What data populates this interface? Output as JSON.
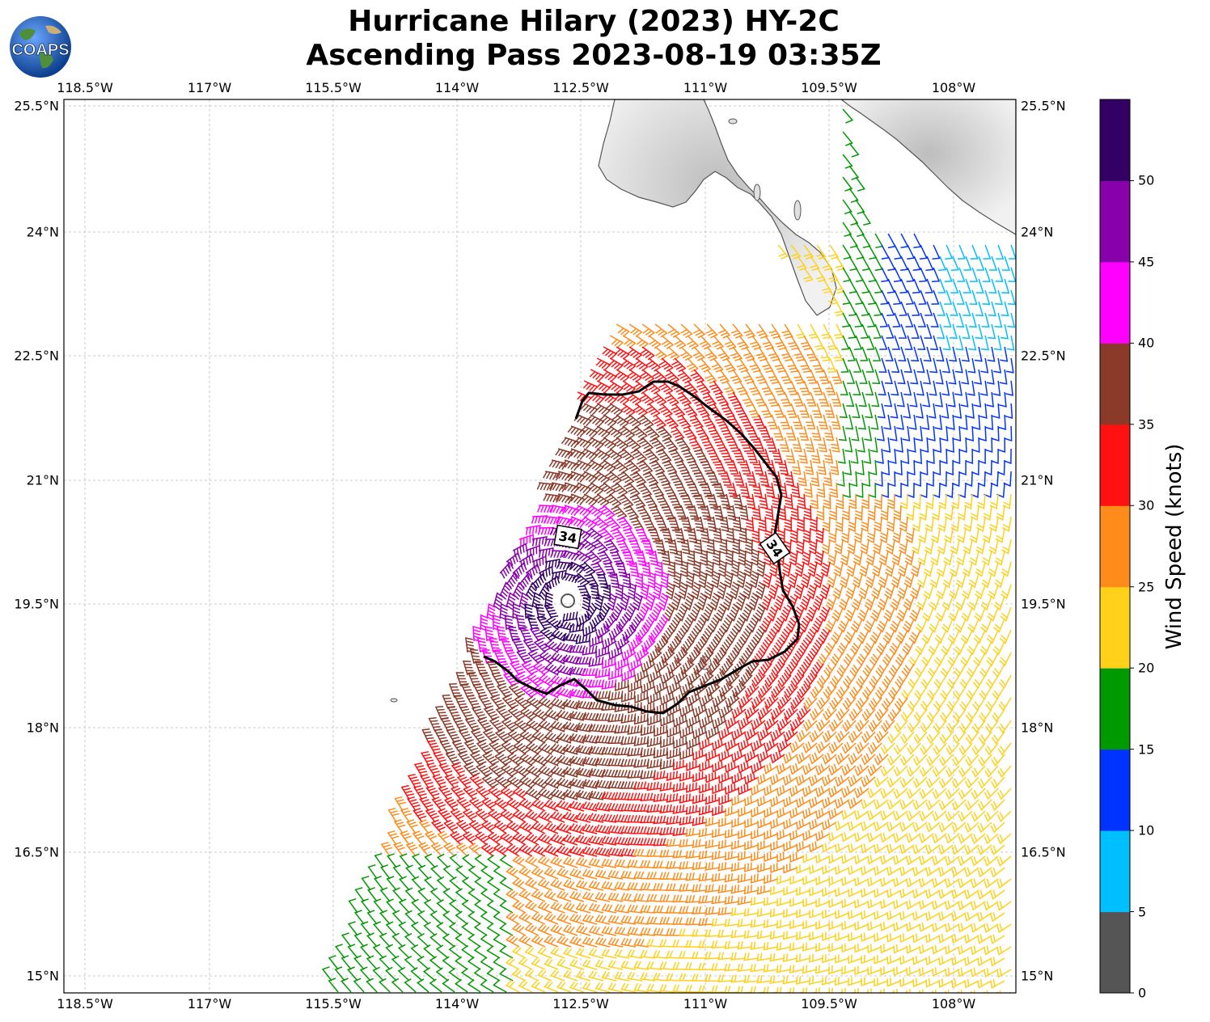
{
  "header": {
    "title_line1": "Hurricane Hilary (2023) HY-2C",
    "title_line2": "Ascending Pass 2023-08-19 03:35Z",
    "logo_text": "COAPS"
  },
  "map": {
    "lon_labels": [
      "118.5°W",
      "117°W",
      "115.5°W",
      "114°W",
      "112.5°W",
      "111°W",
      "109.5°W",
      "108°W"
    ],
    "lat_labels": [
      "25.5°N",
      "24°N",
      "22.5°N",
      "21°N",
      "19.5°N",
      "18°N",
      "16.5°N",
      "15°N"
    ],
    "contour_label": "34",
    "colors": {
      "land_outline": "#555555",
      "contour": "#000000",
      "grid": "#bbbbbb"
    }
  },
  "colorbar": {
    "label": "Wind Speed (knots)",
    "ticks": [
      "0",
      "5",
      "10",
      "15",
      "20",
      "25",
      "30",
      "35",
      "40",
      "45",
      "50"
    ],
    "colors": [
      "#555555",
      "#00bfff",
      "#0033ff",
      "#009900",
      "#ffd11a",
      "#ff8c1a",
      "#ff1111",
      "#8b3a2a",
      "#ff00ff",
      "#8800aa",
      "#330066"
    ]
  }
}
